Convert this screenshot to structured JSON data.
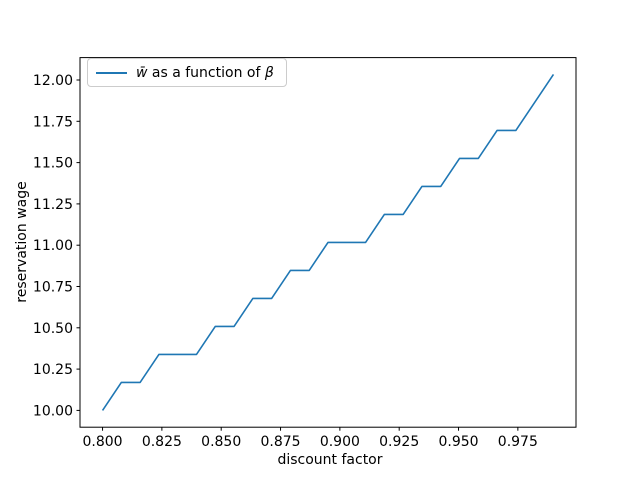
{
  "figure": {
    "background_color": "#ffffff",
    "axes_color": "#000000"
  },
  "chart_data": {
    "type": "line",
    "title": "",
    "xlabel": "discount factor",
    "ylabel": "reservation wage",
    "grid": false,
    "xlim": [
      0.7905,
      0.9995
    ],
    "ylim": [
      9.8983,
      12.1356
    ],
    "xticks": {
      "values": [
        0.8,
        0.825,
        0.85,
        0.875,
        0.9,
        0.925,
        0.95,
        0.975
      ],
      "labels": [
        "0.800",
        "0.825",
        "0.850",
        "0.875",
        "0.900",
        "0.925",
        "0.950",
        "0.975"
      ]
    },
    "yticks": {
      "values": [
        10.0,
        10.25,
        10.5,
        10.75,
        11.0,
        11.25,
        11.5,
        11.75,
        12.0
      ],
      "labels": [
        "10.00",
        "10.25",
        "10.50",
        "10.75",
        "11.00",
        "11.25",
        "11.50",
        "11.75",
        "12.00"
      ]
    },
    "series": [
      {
        "name": "w̄ as a function of β",
        "color": "#1f77b4",
        "x": [
          0.8,
          0.807917,
          0.815833,
          0.82375,
          0.831667,
          0.839583,
          0.8475,
          0.855417,
          0.863333,
          0.87125,
          0.879167,
          0.887083,
          0.895,
          0.902917,
          0.910833,
          0.91875,
          0.926667,
          0.934583,
          0.9425,
          0.950417,
          0.958333,
          0.96625,
          0.974167,
          0.982083,
          0.99
        ],
        "y": [
          10.0,
          10.1695,
          10.1695,
          10.339,
          10.339,
          10.339,
          10.5085,
          10.5085,
          10.678,
          10.678,
          10.8475,
          10.8475,
          11.0169,
          11.0169,
          11.0169,
          11.1864,
          11.1864,
          11.3559,
          11.3559,
          11.5254,
          11.5254,
          11.6949,
          11.6949,
          11.8644,
          12.0339
        ]
      }
    ],
    "legend": {
      "position": "upper-left",
      "entries": [
        {
          "prefix": "w̄",
          "mid": " as a function of ",
          "suffix": "β",
          "color": "#1f77b4"
        }
      ]
    }
  }
}
